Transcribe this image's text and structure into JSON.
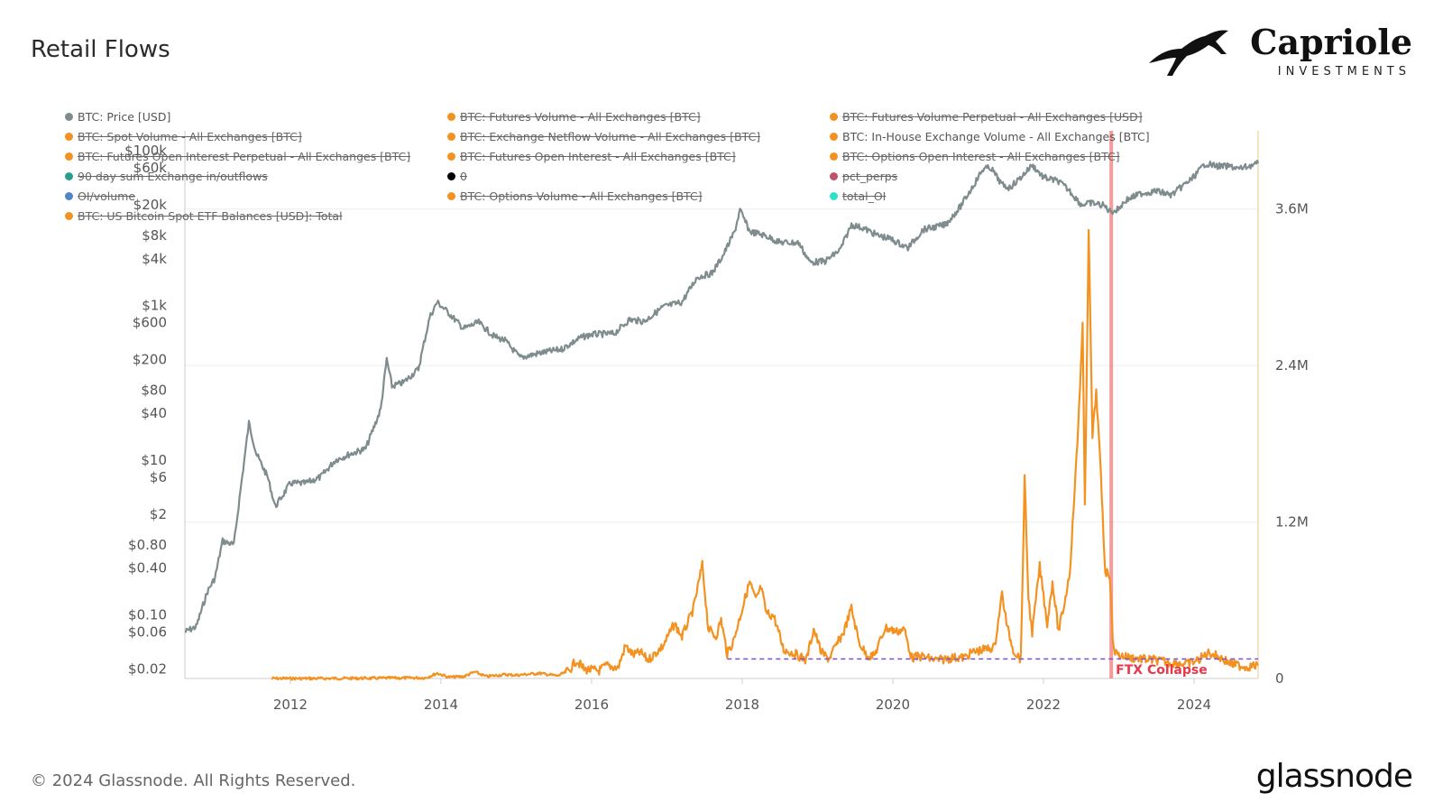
{
  "page": {
    "title": "Retail Flows",
    "footer_copyright": "© 2024 Glassnode. All Rights Reserved.",
    "footer_brand": "glassnode",
    "brand_name": "Capriole",
    "brand_sub": "INVESTMENTS"
  },
  "colors": {
    "price": "#7f8c8d",
    "volume": "#f39221",
    "baseline": "#7b4fe0",
    "event": "#f07a7a",
    "event_text": "#e8374a"
  },
  "legend": [
    {
      "label": "BTC: Price [USD]",
      "color": "#7f8c8d",
      "active": true
    },
    {
      "label": "BTC: Futures Volume - All Exchanges [BTC]",
      "color": "#f39221",
      "active": false
    },
    {
      "label": "BTC: Futures Volume Perpetual - All Exchanges [USD]",
      "color": "#f39221",
      "active": false
    },
    {
      "label": "BTC: Spot Volume - All Exchanges [BTC]",
      "color": "#f39221",
      "active": false
    },
    {
      "label": "BTC: Exchange Netflow Volume - All Exchanges [BTC]",
      "color": "#f39221",
      "active": false
    },
    {
      "label": "BTC: In-House Exchange Volume - All Exchanges [BTC]",
      "color": "#f39221",
      "active": true
    },
    {
      "label": "BTC: Futures Open Interest Perpetual - All Exchanges [BTC]",
      "color": "#f39221",
      "active": false
    },
    {
      "label": "BTC: Futures Open Interest - All Exchanges [BTC]",
      "color": "#f39221",
      "active": false
    },
    {
      "label": "BTC: Options Open Interest - All Exchanges [BTC]",
      "color": "#f39221",
      "active": false
    },
    {
      "label": "90 day sum Exchange in/outflows",
      "color": "#2a9d8f",
      "active": false
    },
    {
      "label": "0",
      "color": "#000000",
      "active": false
    },
    {
      "label": "pct_perps",
      "color": "#c0506e",
      "active": false
    },
    {
      "label": "OI/volume",
      "color": "#4f86c6",
      "active": false
    },
    {
      "label": "BTC: Options Volume - All Exchanges [BTC]",
      "color": "#f39221",
      "active": false
    },
    {
      "label": "total_OI",
      "color": "#2fe0c8",
      "active": false
    },
    {
      "label": "BTC: US Bitcoin Spot ETF Balances [USD]: Total",
      "color": "#f39221",
      "active": false
    }
  ],
  "chart_data": {
    "type": "line",
    "x_ticks": [
      "2012",
      "2014",
      "2016",
      "2018",
      "2020",
      "2022",
      "2024"
    ],
    "xlim": [
      2010.6,
      2024.85
    ],
    "y_left": {
      "scale": "log",
      "ticks": [
        "$100k",
        "$60k",
        "$20k",
        "$8k",
        "$4k",
        "$1k",
        "$600",
        "$200",
        "$80",
        "$40",
        "$10",
        "$6",
        "$2",
        "$0.80",
        "$0.40",
        "$0.10",
        "$0.06",
        "$0.02"
      ],
      "tick_values": [
        100000,
        60000,
        20000,
        8000,
        4000,
        1000,
        600,
        200,
        80,
        40,
        10,
        6,
        2,
        0.8,
        0.4,
        0.1,
        0.06,
        0.02
      ]
    },
    "y_right": {
      "scale": "linear",
      "ticks": [
        "3.6M",
        "2.4M",
        "1.2M",
        "0"
      ],
      "tick_values": [
        3600000,
        2400000,
        1200000,
        0
      ],
      "ylim": [
        0,
        4200000
      ]
    },
    "series": [
      {
        "name": "BTC: Price [USD]",
        "axis": "left",
        "points": [
          [
            2010.6,
            0.06
          ],
          [
            2010.75,
            0.07
          ],
          [
            2010.9,
            0.2
          ],
          [
            2011.0,
            0.3
          ],
          [
            2011.1,
            0.9
          ],
          [
            2011.25,
            0.8
          ],
          [
            2011.35,
            5
          ],
          [
            2011.45,
            30
          ],
          [
            2011.55,
            12
          ],
          [
            2011.7,
            6
          ],
          [
            2011.8,
            2.5
          ],
          [
            2011.9,
            3.5
          ],
          [
            2012.0,
            5
          ],
          [
            2012.2,
            5
          ],
          [
            2012.4,
            6
          ],
          [
            2012.6,
            10
          ],
          [
            2012.8,
            12
          ],
          [
            2013.0,
            14
          ],
          [
            2013.2,
            45
          ],
          [
            2013.28,
            200
          ],
          [
            2013.35,
            90
          ],
          [
            2013.5,
            100
          ],
          [
            2013.7,
            150
          ],
          [
            2013.85,
            700
          ],
          [
            2013.95,
            1100
          ],
          [
            2014.1,
            800
          ],
          [
            2014.3,
            500
          ],
          [
            2014.5,
            600
          ],
          [
            2014.7,
            400
          ],
          [
            2014.85,
            350
          ],
          [
            2015.05,
            210
          ],
          [
            2015.3,
            240
          ],
          [
            2015.6,
            270
          ],
          [
            2015.85,
            380
          ],
          [
            2016.0,
            420
          ],
          [
            2016.3,
            430
          ],
          [
            2016.5,
            650
          ],
          [
            2016.7,
            620
          ],
          [
            2016.95,
            950
          ],
          [
            2017.2,
            1100
          ],
          [
            2017.4,
            2300
          ],
          [
            2017.6,
            2600
          ],
          [
            2017.75,
            4500
          ],
          [
            2017.9,
            9000
          ],
          [
            2017.97,
            17000
          ],
          [
            2018.1,
            9000
          ],
          [
            2018.3,
            8000
          ],
          [
            2018.5,
            6500
          ],
          [
            2018.75,
            6400
          ],
          [
            2018.9,
            3600
          ],
          [
            2019.1,
            3700
          ],
          [
            2019.3,
            5200
          ],
          [
            2019.45,
            11000
          ],
          [
            2019.6,
            10000
          ],
          [
            2019.8,
            8000
          ],
          [
            2019.97,
            7200
          ],
          [
            2020.2,
            5500
          ],
          [
            2020.4,
            9500
          ],
          [
            2020.7,
            11000
          ],
          [
            2020.9,
            19000
          ],
          [
            2021.05,
            33000
          ],
          [
            2021.2,
            58000
          ],
          [
            2021.3,
            60000
          ],
          [
            2021.45,
            36000
          ],
          [
            2021.55,
            33000
          ],
          [
            2021.7,
            45000
          ],
          [
            2021.85,
            65000
          ],
          [
            2022.0,
            45000
          ],
          [
            2022.2,
            40000
          ],
          [
            2022.35,
            30000
          ],
          [
            2022.5,
            20000
          ],
          [
            2022.65,
            21000
          ],
          [
            2022.8,
            19500
          ],
          [
            2022.88,
            16500
          ],
          [
            2022.97,
            16800
          ],
          [
            2023.1,
            23000
          ],
          [
            2023.3,
            28000
          ],
          [
            2023.5,
            30000
          ],
          [
            2023.7,
            26500
          ],
          [
            2023.85,
            35000
          ],
          [
            2023.97,
            43000
          ],
          [
            2024.15,
            68000
          ],
          [
            2024.3,
            63000
          ],
          [
            2024.5,
            62000
          ],
          [
            2024.6,
            58000
          ],
          [
            2024.75,
            64000
          ],
          [
            2024.85,
            68000
          ]
        ]
      },
      {
        "name": "BTC: In-House Exchange Volume - All Exchanges [BTC]",
        "axis": "right",
        "points": [
          [
            2011.75,
            0
          ],
          [
            2012.5,
            0
          ],
          [
            2013.0,
            2000
          ],
          [
            2013.8,
            5000
          ],
          [
            2013.95,
            40000
          ],
          [
            2014.1,
            10000
          ],
          [
            2014.3,
            15000
          ],
          [
            2014.45,
            50000
          ],
          [
            2014.6,
            15000
          ],
          [
            2014.85,
            30000
          ],
          [
            2015.0,
            25000
          ],
          [
            2015.3,
            40000
          ],
          [
            2015.55,
            20000
          ],
          [
            2015.7,
            60000
          ],
          [
            2015.8,
            140000
          ],
          [
            2015.9,
            70000
          ],
          [
            2016.1,
            60000
          ],
          [
            2016.2,
            100000
          ],
          [
            2016.35,
            80000
          ],
          [
            2016.45,
            250000
          ],
          [
            2016.55,
            180000
          ],
          [
            2016.65,
            200000
          ],
          [
            2016.75,
            140000
          ],
          [
            2016.95,
            250000
          ],
          [
            2017.1,
            420000
          ],
          [
            2017.2,
            320000
          ],
          [
            2017.35,
            530000
          ],
          [
            2017.47,
            870000
          ],
          [
            2017.55,
            380000
          ],
          [
            2017.65,
            320000
          ],
          [
            2017.72,
            450000
          ],
          [
            2017.8,
            190000
          ],
          [
            2017.88,
            280000
          ],
          [
            2017.97,
            470000
          ],
          [
            2018.05,
            640000
          ],
          [
            2018.1,
            740000
          ],
          [
            2018.18,
            600000
          ],
          [
            2018.25,
            700000
          ],
          [
            2018.32,
            500000
          ],
          [
            2018.42,
            480000
          ],
          [
            2018.55,
            220000
          ],
          [
            2018.7,
            190000
          ],
          [
            2018.85,
            140000
          ],
          [
            2018.95,
            380000
          ],
          [
            2019.05,
            200000
          ],
          [
            2019.15,
            150000
          ],
          [
            2019.35,
            360000
          ],
          [
            2019.45,
            540000
          ],
          [
            2019.55,
            280000
          ],
          [
            2019.65,
            180000
          ],
          [
            2019.75,
            170000
          ],
          [
            2019.9,
            390000
          ],
          [
            2020.05,
            360000
          ],
          [
            2020.15,
            380000
          ],
          [
            2020.25,
            160000
          ],
          [
            2020.4,
            170000
          ],
          [
            2020.5,
            150000
          ],
          [
            2020.6,
            140000
          ],
          [
            2020.8,
            160000
          ],
          [
            2020.95,
            160000
          ],
          [
            2021.05,
            200000
          ],
          [
            2021.2,
            220000
          ],
          [
            2021.35,
            240000
          ],
          [
            2021.45,
            650000
          ],
          [
            2021.52,
            390000
          ],
          [
            2021.6,
            220000
          ],
          [
            2021.65,
            180000
          ],
          [
            2021.7,
            150000
          ],
          [
            2021.75,
            1530000
          ],
          [
            2021.8,
            620000
          ],
          [
            2021.85,
            350000
          ],
          [
            2021.95,
            860000
          ],
          [
            2022.05,
            420000
          ],
          [
            2022.12,
            740000
          ],
          [
            2022.2,
            360000
          ],
          [
            2022.28,
            580000
          ],
          [
            2022.35,
            820000
          ],
          [
            2022.45,
            1800000
          ],
          [
            2022.52,
            2700000
          ],
          [
            2022.55,
            1300000
          ],
          [
            2022.6,
            3460000
          ],
          [
            2022.65,
            1850000
          ],
          [
            2022.7,
            2200000
          ],
          [
            2022.75,
            1700000
          ],
          [
            2022.82,
            820000
          ],
          [
            2022.88,
            800000
          ],
          [
            2022.92,
            320000
          ],
          [
            2022.95,
            200000
          ],
          [
            2023.0,
            180000
          ],
          [
            2023.15,
            160000
          ],
          [
            2023.3,
            150000
          ],
          [
            2023.5,
            140000
          ],
          [
            2023.7,
            120000
          ],
          [
            2023.9,
            110000
          ],
          [
            2024.05,
            140000
          ],
          [
            2024.2,
            200000
          ],
          [
            2024.35,
            160000
          ],
          [
            2024.5,
            110000
          ],
          [
            2024.7,
            90000
          ],
          [
            2024.85,
            100000
          ]
        ]
      }
    ],
    "baseline": {
      "value": 150000,
      "x_start": 2017.8,
      "x_end": 2024.85,
      "style": "dashed"
    },
    "event": {
      "x": 2022.9,
      "label": "FTX Collapse"
    },
    "grid": "horizontal-light"
  }
}
